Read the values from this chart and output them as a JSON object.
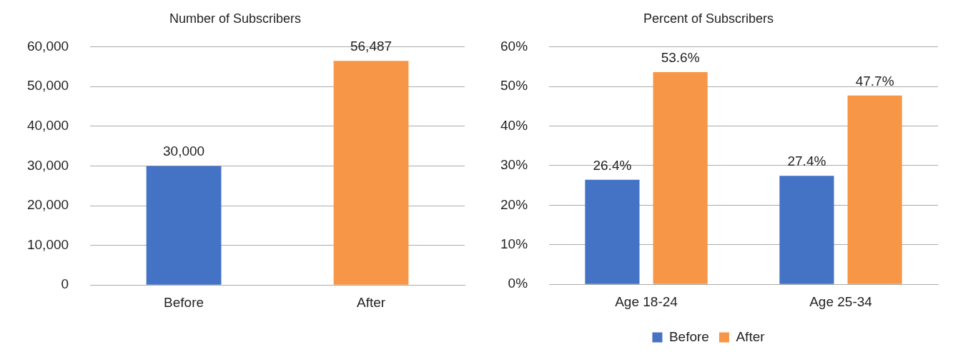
{
  "chart_data": [
    {
      "type": "bar",
      "title": "Number of Subscribers",
      "categories": [
        "Before",
        "After"
      ],
      "values": [
        30000,
        56487
      ],
      "colors": [
        "#4472c4",
        "#f79646"
      ],
      "value_labels": [
        "30,000",
        "56,487"
      ],
      "ylim": [
        0,
        60000
      ],
      "yticks": [
        {
          "value": 0,
          "label": "0"
        },
        {
          "value": 10000,
          "label": "10,000"
        },
        {
          "value": 20000,
          "label": "20,000"
        },
        {
          "value": 30000,
          "label": "30,000"
        },
        {
          "value": 40000,
          "label": "40,000"
        },
        {
          "value": 50000,
          "label": "50,000"
        },
        {
          "value": 60000,
          "label": "60,000"
        }
      ],
      "grid": "y",
      "legend": false
    },
    {
      "type": "bar",
      "title": "Percent of Subscribers",
      "categories": [
        "Age 18-24",
        "Age 25-34"
      ],
      "series": [
        {
          "name": "Before",
          "color": "#4472c4",
          "values": [
            26.4,
            27.4
          ],
          "value_labels": [
            "26.4%",
            "27.4%"
          ]
        },
        {
          "name": "After",
          "color": "#f79646",
          "values": [
            53.6,
            47.7
          ],
          "value_labels": [
            "53.6%",
            "47.7%"
          ]
        }
      ],
      "ylim": [
        0,
        60
      ],
      "yticks": [
        {
          "value": 0,
          "label": "0%"
        },
        {
          "value": 10,
          "label": "10%"
        },
        {
          "value": 20,
          "label": "20%"
        },
        {
          "value": 30,
          "label": "30%"
        },
        {
          "value": 40,
          "label": "40%"
        },
        {
          "value": 50,
          "label": "50%"
        },
        {
          "value": 60,
          "label": "60%"
        }
      ],
      "grid": "y",
      "legend": "bottom"
    }
  ]
}
